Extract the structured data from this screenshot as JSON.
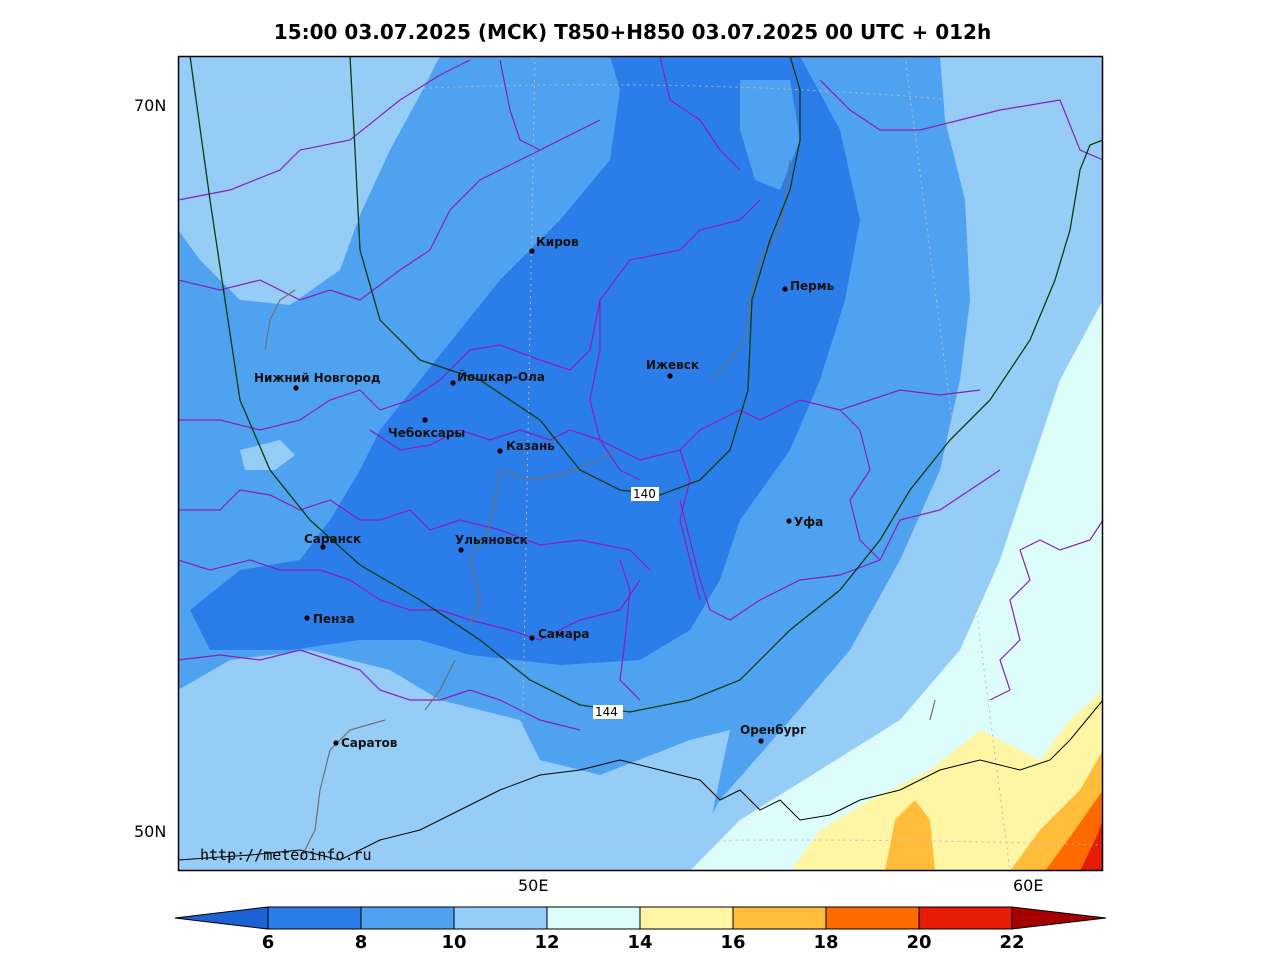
{
  "header": {
    "title": "15:00 03.07.2025 (МСК) T850+H850 03.07.2025 00 UTC + 012h"
  },
  "axes": {
    "lat_labels": [
      "70N",
      "50N"
    ],
    "lon_labels": [
      "50E",
      "60E"
    ]
  },
  "cities": [
    {
      "name": "Киров"
    },
    {
      "name": "Пермь"
    },
    {
      "name": "Нижний Новгород"
    },
    {
      "name": "Йошкар-Ола"
    },
    {
      "name": "Ижевск"
    },
    {
      "name": "Чебоксары"
    },
    {
      "name": "Казань"
    },
    {
      "name": "Уфа"
    },
    {
      "name": "Саранск"
    },
    {
      "name": "Ульяновск"
    },
    {
      "name": "Пенза"
    },
    {
      "name": "Самара"
    },
    {
      "name": "Оренбург"
    },
    {
      "name": "Саратов"
    }
  ],
  "contour_labels": [
    "140",
    "144"
  ],
  "watermark": "http://meteoinfo.ru",
  "colorbar": {
    "ticks": [
      "6",
      "8",
      "10",
      "12",
      "14",
      "16",
      "18",
      "20",
      "22"
    ],
    "colors": [
      "#1b62d4",
      "#2b7de9",
      "#4fa2f0",
      "#96cdf7",
      "#ddfdfd",
      "#fff6a5",
      "#ffbd3a",
      "#ff6a00",
      "#e51b06",
      "#a60000"
    ]
  },
  "chart_data": {
    "type": "heatmap",
    "title": "15:00 03.07.2025 (МСК) T850+H850 03.07.2025 00 UTC + 012h",
    "colorbar_levels": [
      6,
      8,
      10,
      12,
      14,
      16,
      18,
      20,
      22
    ],
    "contour_levels": [
      140,
      144
    ],
    "lat_ticks": [
      "70N",
      "50N"
    ],
    "lon_ticks": [
      "50E",
      "60E"
    ]
  }
}
